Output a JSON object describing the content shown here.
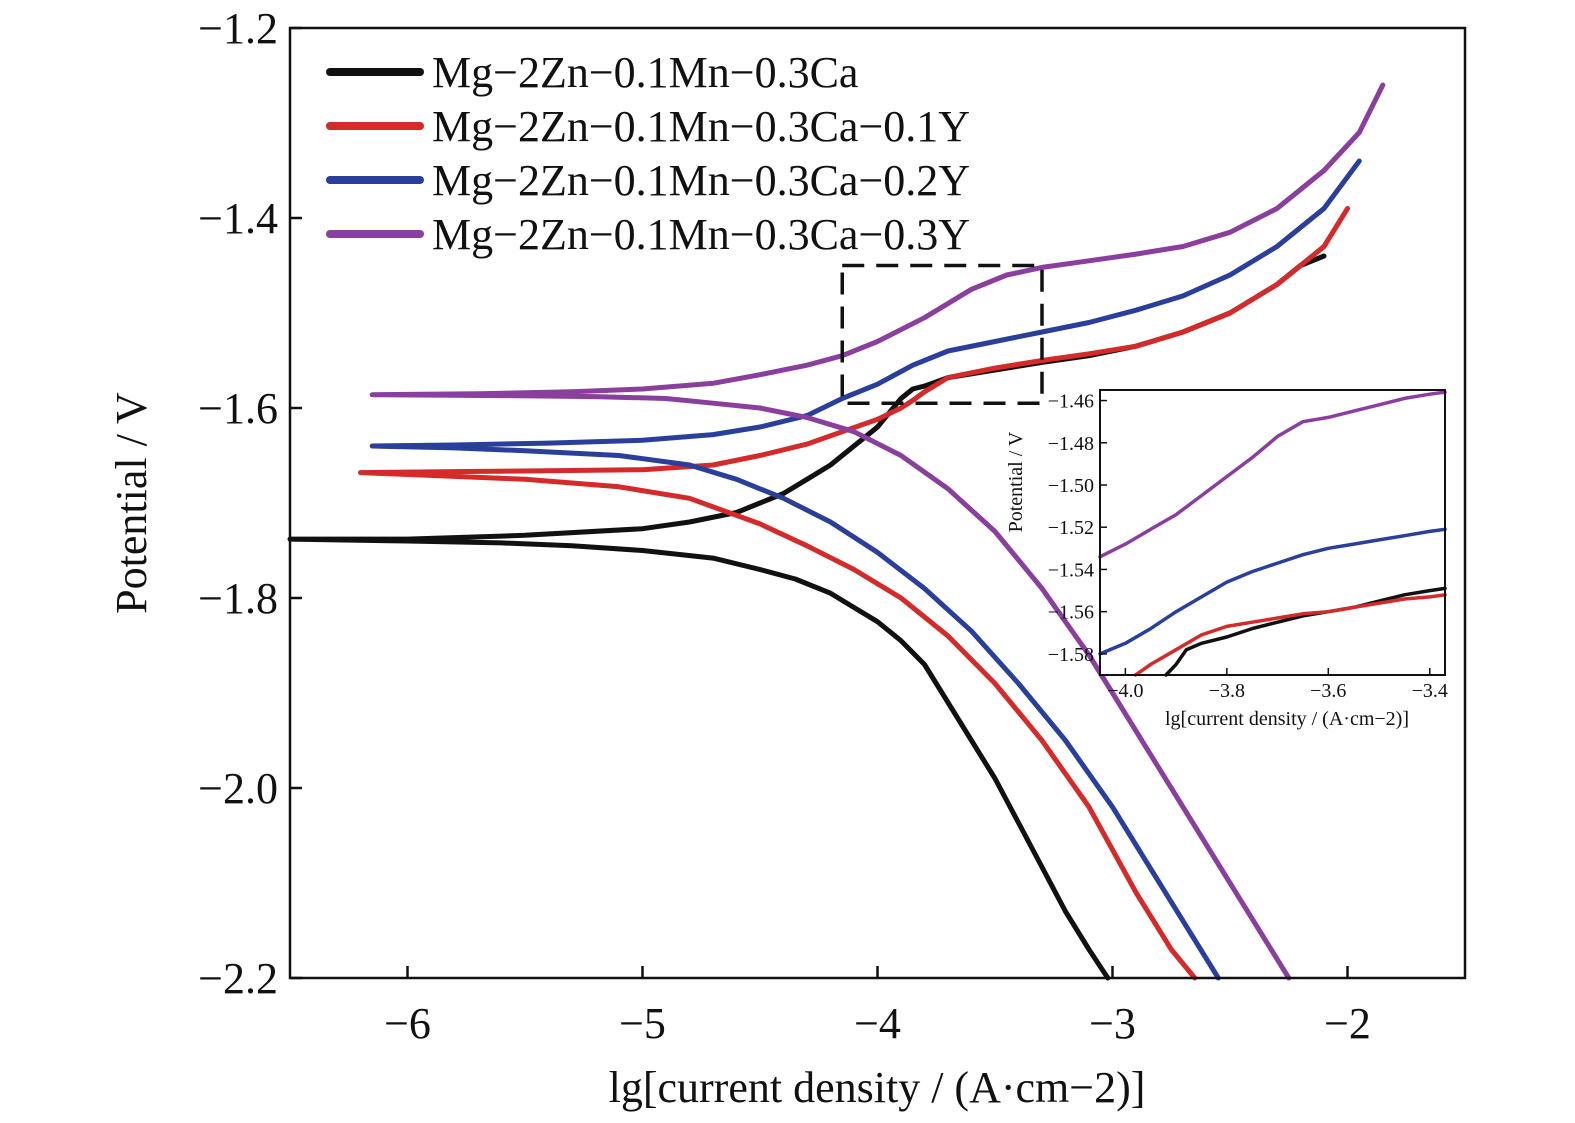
{
  "chart_data": [
    {
      "type": "line",
      "xlabel": "lg[current density / (A·cm−2)]",
      "ylabel": "Potential / V",
      "xlim": [
        -6.5,
        -1.5
      ],
      "ylim": [
        -2.2,
        -1.2
      ],
      "xticks": [
        -6,
        -5,
        -4,
        -3,
        -2
      ],
      "xtick_labels": [
        "−6",
        "−5",
        "−4",
        "−3",
        "−2"
      ],
      "yticks": [
        -1.2,
        -1.4,
        -1.6,
        -1.8,
        -2.0,
        -2.2
      ],
      "ytick_labels": [
        "−1.2",
        "−1.4",
        "−1.6",
        "−1.8",
        "−2.0",
        "−2.2"
      ],
      "grid": false,
      "legend_position": "top-left",
      "highlight_box": {
        "x": [
          -4.15,
          -3.3
        ],
        "y": [
          -1.595,
          -1.45
        ]
      },
      "series": [
        {
          "name": "Mg−2Zn−0.1Mn−0.3Ca",
          "color": "#111111",
          "x": [
            -3.02,
            -3.1,
            -3.2,
            -3.35,
            -3.5,
            -3.6,
            -3.7,
            -3.8,
            -3.9,
            -4.0,
            -4.1,
            -4.2,
            -4.35,
            -4.5,
            -4.7,
            -5.0,
            -5.3,
            -5.6,
            -6.0,
            -6.5,
            -6.0,
            -5.5,
            -5.0,
            -4.8,
            -4.6,
            -4.5,
            -4.4,
            -4.3,
            -4.2,
            -4.1,
            -4.0,
            -3.95,
            -3.9,
            -3.85,
            -3.8,
            -3.7,
            -3.5,
            -3.3,
            -3.1,
            -2.9,
            -2.7,
            -2.5,
            -2.3,
            -2.2,
            -2.1
          ],
          "y": [
            -2.2,
            -2.17,
            -2.13,
            -2.06,
            -1.99,
            -1.95,
            -1.91,
            -1.87,
            -1.845,
            -1.825,
            -1.81,
            -1.795,
            -1.78,
            -1.77,
            -1.758,
            -1.75,
            -1.745,
            -1.742,
            -1.74,
            -1.738,
            -1.738,
            -1.734,
            -1.727,
            -1.72,
            -1.71,
            -1.7,
            -1.69,
            -1.675,
            -1.66,
            -1.64,
            -1.62,
            -1.605,
            -1.59,
            -1.58,
            -1.577,
            -1.568,
            -1.56,
            -1.552,
            -1.545,
            -1.535,
            -1.52,
            -1.5,
            -1.47,
            -1.45,
            -1.44
          ]
        },
        {
          "name": "Mg−2Zn−0.1Mn−0.3Ca−0.1Y",
          "color": "#d42a2a",
          "x": [
            -2.65,
            -2.75,
            -2.9,
            -3.1,
            -3.3,
            -3.5,
            -3.7,
            -3.9,
            -4.1,
            -4.3,
            -4.5,
            -4.8,
            -5.1,
            -5.5,
            -5.8,
            -6.2,
            -5.8,
            -5.4,
            -5.0,
            -4.7,
            -4.5,
            -4.3,
            -4.15,
            -4.0,
            -3.9,
            -3.85,
            -3.8,
            -3.7,
            -3.5,
            -3.3,
            -3.1,
            -2.9,
            -2.7,
            -2.5,
            -2.3,
            -2.1,
            -2.0
          ],
          "y": [
            -2.2,
            -2.17,
            -2.11,
            -2.02,
            -1.95,
            -1.89,
            -1.84,
            -1.8,
            -1.77,
            -1.745,
            -1.722,
            -1.695,
            -1.683,
            -1.675,
            -1.672,
            -1.668,
            -1.667,
            -1.666,
            -1.665,
            -1.66,
            -1.65,
            -1.638,
            -1.625,
            -1.612,
            -1.6,
            -1.592,
            -1.583,
            -1.568,
            -1.558,
            -1.55,
            -1.543,
            -1.535,
            -1.52,
            -1.5,
            -1.47,
            -1.43,
            -1.39
          ]
        },
        {
          "name": "Mg−2Zn−0.1Mn−0.3Ca−0.2Y",
          "color": "#2a3f9c",
          "x": [
            -2.55,
            -2.65,
            -2.8,
            -3.0,
            -3.2,
            -3.4,
            -3.6,
            -3.8,
            -4.0,
            -4.2,
            -4.4,
            -4.6,
            -4.8,
            -5.1,
            -5.5,
            -5.8,
            -6.15,
            -5.8,
            -5.4,
            -5.0,
            -4.7,
            -4.5,
            -4.3,
            -4.15,
            -4.0,
            -3.85,
            -3.7,
            -3.5,
            -3.3,
            -3.1,
            -2.9,
            -2.7,
            -2.5,
            -2.3,
            -2.1,
            -1.95
          ],
          "y": [
            -2.2,
            -2.16,
            -2.1,
            -2.02,
            -1.95,
            -1.89,
            -1.835,
            -1.79,
            -1.752,
            -1.72,
            -1.695,
            -1.675,
            -1.66,
            -1.65,
            -1.645,
            -1.642,
            -1.64,
            -1.639,
            -1.637,
            -1.634,
            -1.628,
            -1.62,
            -1.608,
            -1.59,
            -1.575,
            -1.555,
            -1.54,
            -1.53,
            -1.52,
            -1.51,
            -1.497,
            -1.482,
            -1.46,
            -1.43,
            -1.39,
            -1.34
          ]
        },
        {
          "name": "Mg−2Zn−0.1Mn−0.3Ca−0.3Y",
          "color": "#8a3f9e",
          "x": [
            -2.25,
            -2.35,
            -2.5,
            -2.7,
            -2.9,
            -3.1,
            -3.3,
            -3.5,
            -3.7,
            -3.9,
            -4.1,
            -4.3,
            -4.5,
            -4.7,
            -4.9,
            -5.2,
            -5.6,
            -6.15,
            -5.7,
            -5.3,
            -5.0,
            -4.7,
            -4.5,
            -4.3,
            -4.15,
            -4.0,
            -3.8,
            -3.6,
            -3.45,
            -3.3,
            -3.1,
            -2.9,
            -2.7,
            -2.5,
            -2.3,
            -2.1,
            -1.95,
            -1.85
          ],
          "y": [
            -2.2,
            -2.16,
            -2.1,
            -2.02,
            -1.94,
            -1.86,
            -1.79,
            -1.73,
            -1.685,
            -1.65,
            -1.625,
            -1.61,
            -1.6,
            -1.595,
            -1.59,
            -1.588,
            -1.587,
            -1.586,
            -1.585,
            -1.583,
            -1.58,
            -1.574,
            -1.565,
            -1.555,
            -1.545,
            -1.53,
            -1.505,
            -1.475,
            -1.46,
            -1.452,
            -1.445,
            -1.438,
            -1.43,
            -1.415,
            -1.39,
            -1.35,
            -1.31,
            -1.26
          ]
        }
      ]
    },
    {
      "type": "line",
      "inset": true,
      "xlabel": "lg[current density / (A·cm−2)]",
      "ylabel": "Potential / V",
      "xlim": [
        -4.05,
        -3.37
      ],
      "ylim": [
        -1.59,
        -1.455
      ],
      "xticks": [
        -4.0,
        -3.8,
        -3.6,
        -3.4
      ],
      "xtick_labels": [
        "−4.0",
        "−3.8",
        "−3.6",
        "−3.4"
      ],
      "yticks": [
        -1.46,
        -1.48,
        -1.5,
        -1.52,
        -1.54,
        -1.56,
        -1.58
      ],
      "ytick_labels": [
        "−1.46",
        "−1.48",
        "−1.50",
        "−1.52",
        "−1.54",
        "−1.56",
        "−1.58"
      ],
      "grid": false,
      "series": [
        {
          "color": "#111111",
          "x": [
            -3.92,
            -3.9,
            -3.88,
            -3.85,
            -3.8,
            -3.75,
            -3.7,
            -3.65,
            -3.6,
            -3.55,
            -3.5,
            -3.45,
            -3.4,
            -3.37
          ],
          "y": [
            -1.59,
            -1.585,
            -1.578,
            -1.575,
            -1.572,
            -1.568,
            -1.565,
            -1.562,
            -1.56,
            -1.558,
            -1.555,
            -1.552,
            -1.55,
            -1.549
          ]
        },
        {
          "color": "#d42a2a",
          "x": [
            -3.98,
            -3.95,
            -3.9,
            -3.85,
            -3.8,
            -3.75,
            -3.7,
            -3.65,
            -3.6,
            -3.55,
            -3.5,
            -3.45,
            -3.4,
            -3.37
          ],
          "y": [
            -1.59,
            -1.585,
            -1.578,
            -1.571,
            -1.567,
            -1.565,
            -1.563,
            -1.561,
            -1.56,
            -1.558,
            -1.556,
            -1.554,
            -1.553,
            -1.552
          ]
        },
        {
          "color": "#2a3f9c",
          "x": [
            -4.05,
            -4.0,
            -3.95,
            -3.9,
            -3.85,
            -3.8,
            -3.75,
            -3.7,
            -3.65,
            -3.6,
            -3.55,
            -3.5,
            -3.45,
            -3.4,
            -3.37
          ],
          "y": [
            -1.58,
            -1.575,
            -1.568,
            -1.56,
            -1.553,
            -1.546,
            -1.541,
            -1.537,
            -1.533,
            -1.53,
            -1.528,
            -1.526,
            -1.524,
            -1.522,
            -1.521
          ]
        },
        {
          "color": "#8a3f9e",
          "x": [
            -4.05,
            -4.0,
            -3.95,
            -3.9,
            -3.85,
            -3.8,
            -3.75,
            -3.7,
            -3.65,
            -3.6,
            -3.55,
            -3.5,
            -3.45,
            -3.4,
            -3.37
          ],
          "y": [
            -1.534,
            -1.528,
            -1.521,
            -1.514,
            -1.505,
            -1.496,
            -1.487,
            -1.477,
            -1.47,
            -1.468,
            -1.465,
            -1.462,
            -1.459,
            -1.457,
            -1.456
          ]
        }
      ]
    }
  ]
}
